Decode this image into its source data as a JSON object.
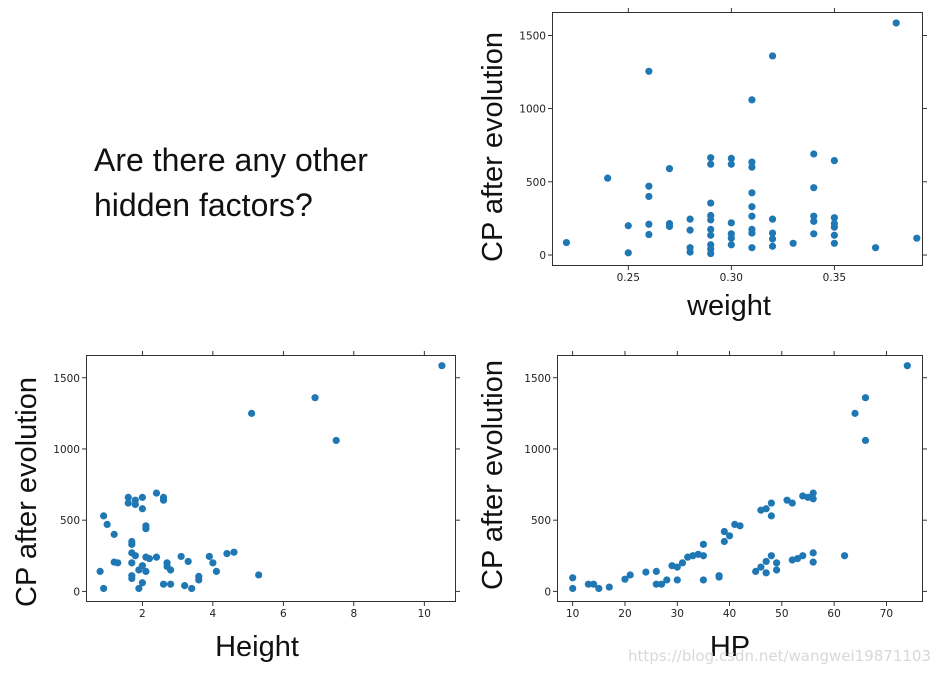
{
  "question": {
    "line1": "Are there any other",
    "line2": "hidden factors?"
  },
  "watermark": "https://blog.csdn.net/wangwei19871103",
  "colors": {
    "points": "#1f77b4",
    "axes": "#000000"
  },
  "chart_data": [
    {
      "id": "weight",
      "type": "scatter",
      "xlabel": "weight",
      "ylabel": "CP after evolution",
      "xlim": [
        0.213,
        0.393
      ],
      "ylim": [
        -75,
        1660
      ],
      "xticks": [
        0.25,
        0.3,
        0.35
      ],
      "xtick_labels": [
        "0.25",
        "0.30",
        "0.35"
      ],
      "yticks": [
        0,
        500,
        1000,
        1500
      ],
      "ytick_labels": [
        "0",
        "500",
        "1000",
        "1500"
      ],
      "points": [
        [
          0.22,
          85
        ],
        [
          0.24,
          525
        ],
        [
          0.25,
          200
        ],
        [
          0.25,
          15
        ],
        [
          0.26,
          1255
        ],
        [
          0.26,
          470
        ],
        [
          0.26,
          400
        ],
        [
          0.26,
          210
        ],
        [
          0.26,
          140
        ],
        [
          0.27,
          590
        ],
        [
          0.27,
          215
        ],
        [
          0.27,
          195
        ],
        [
          0.28,
          245
        ],
        [
          0.28,
          170
        ],
        [
          0.28,
          50
        ],
        [
          0.28,
          20
        ],
        [
          0.29,
          665
        ],
        [
          0.29,
          620
        ],
        [
          0.29,
          355
        ],
        [
          0.29,
          270
        ],
        [
          0.29,
          240
        ],
        [
          0.29,
          175
        ],
        [
          0.29,
          135
        ],
        [
          0.29,
          70
        ],
        [
          0.29,
          40
        ],
        [
          0.29,
          10
        ],
        [
          0.3,
          660
        ],
        [
          0.3,
          620
        ],
        [
          0.3,
          220
        ],
        [
          0.3,
          145
        ],
        [
          0.3,
          115
        ],
        [
          0.3,
          70
        ],
        [
          0.31,
          1060
        ],
        [
          0.31,
          635
        ],
        [
          0.31,
          600
        ],
        [
          0.31,
          425
        ],
        [
          0.31,
          330
        ],
        [
          0.31,
          265
        ],
        [
          0.31,
          175
        ],
        [
          0.31,
          150
        ],
        [
          0.31,
          50
        ],
        [
          0.32,
          1360
        ],
        [
          0.32,
          245
        ],
        [
          0.32,
          150
        ],
        [
          0.32,
          110
        ],
        [
          0.32,
          60
        ],
        [
          0.33,
          80
        ],
        [
          0.34,
          690
        ],
        [
          0.34,
          460
        ],
        [
          0.34,
          265
        ],
        [
          0.34,
          230
        ],
        [
          0.34,
          145
        ],
        [
          0.35,
          645
        ],
        [
          0.35,
          255
        ],
        [
          0.35,
          215
        ],
        [
          0.35,
          190
        ],
        [
          0.35,
          135
        ],
        [
          0.35,
          80
        ],
        [
          0.37,
          50
        ],
        [
          0.38,
          1585
        ],
        [
          0.39,
          115
        ]
      ]
    },
    {
      "id": "height",
      "type": "scatter",
      "xlabel": "Height",
      "ylabel": "CP after evolution",
      "xlim": [
        0.4,
        10.9
      ],
      "ylim": [
        -75,
        1660
      ],
      "xticks": [
        2,
        4,
        6,
        8,
        10
      ],
      "xtick_labels": [
        "2",
        "4",
        "6",
        "8",
        "10"
      ],
      "yticks": [
        0,
        500,
        1000,
        1500
      ],
      "ytick_labels": [
        "0",
        "500",
        "1000",
        "1500"
      ],
      "points": [
        [
          0.8,
          140
        ],
        [
          0.9,
          530
        ],
        [
          0.9,
          20
        ],
        [
          1.0,
          470
        ],
        [
          1.2,
          400
        ],
        [
          1.2,
          205
        ],
        [
          1.3,
          200
        ],
        [
          1.6,
          660
        ],
        [
          1.6,
          620
        ],
        [
          1.7,
          350
        ],
        [
          1.7,
          330
        ],
        [
          1.7,
          270
        ],
        [
          1.7,
          200
        ],
        [
          1.7,
          110
        ],
        [
          1.7,
          90
        ],
        [
          1.8,
          640
        ],
        [
          1.8,
          610
        ],
        [
          1.8,
          250
        ],
        [
          1.9,
          20
        ],
        [
          1.9,
          150
        ],
        [
          2.0,
          660
        ],
        [
          2.0,
          580
        ],
        [
          2.0,
          180
        ],
        [
          2.0,
          60
        ],
        [
          2.1,
          460
        ],
        [
          2.1,
          440
        ],
        [
          2.1,
          240
        ],
        [
          2.1,
          140
        ],
        [
          2.2,
          230
        ],
        [
          2.4,
          690
        ],
        [
          2.4,
          240
        ],
        [
          2.6,
          660
        ],
        [
          2.6,
          640
        ],
        [
          2.6,
          50
        ],
        [
          2.7,
          200
        ],
        [
          2.7,
          175
        ],
        [
          2.8,
          150
        ],
        [
          2.8,
          50
        ],
        [
          3.1,
          245
        ],
        [
          3.2,
          40
        ],
        [
          3.3,
          210
        ],
        [
          3.4,
          20
        ],
        [
          3.6,
          105
        ],
        [
          3.6,
          80
        ],
        [
          3.9,
          245
        ],
        [
          4.0,
          200
        ],
        [
          4.1,
          140
        ],
        [
          4.4,
          265
        ],
        [
          4.6,
          275
        ],
        [
          5.1,
          1250
        ],
        [
          5.3,
          115
        ],
        [
          6.9,
          1360
        ],
        [
          7.5,
          1060
        ],
        [
          10.5,
          1585
        ]
      ]
    },
    {
      "id": "hp",
      "type": "scatter",
      "xlabel": "HP",
      "ylabel": "CP after evolution",
      "xlim": [
        7,
        77
      ],
      "ylim": [
        -75,
        1660
      ],
      "xticks": [
        10,
        20,
        30,
        40,
        50,
        60,
        70
      ],
      "xtick_labels": [
        "10",
        "20",
        "30",
        "40",
        "50",
        "60",
        "70"
      ],
      "yticks": [
        0,
        500,
        1000,
        1500
      ],
      "ytick_labels": [
        "0",
        "500",
        "1000",
        "1500"
      ],
      "points": [
        [
          10,
          95
        ],
        [
          10,
          20
        ],
        [
          13,
          50
        ],
        [
          14,
          50
        ],
        [
          15,
          20
        ],
        [
          17,
          30
        ],
        [
          20,
          85
        ],
        [
          21,
          115
        ],
        [
          24,
          135
        ],
        [
          26,
          140
        ],
        [
          26,
          50
        ],
        [
          27,
          50
        ],
        [
          28,
          80
        ],
        [
          29,
          180
        ],
        [
          30,
          170
        ],
        [
          30,
          80
        ],
        [
          31,
          200
        ],
        [
          32,
          240
        ],
        [
          33,
          250
        ],
        [
          34,
          260
        ],
        [
          35,
          330
        ],
        [
          35,
          250
        ],
        [
          35,
          80
        ],
        [
          38,
          110
        ],
        [
          38,
          100
        ],
        [
          39,
          350
        ],
        [
          39,
          420
        ],
        [
          40,
          390
        ],
        [
          41,
          470
        ],
        [
          42,
          460
        ],
        [
          45,
          140
        ],
        [
          46,
          570
        ],
        [
          46,
          170
        ],
        [
          47,
          580
        ],
        [
          47,
          210
        ],
        [
          47,
          130
        ],
        [
          48,
          620
        ],
        [
          48,
          530
        ],
        [
          48,
          250
        ],
        [
          49,
          200
        ],
        [
          49,
          150
        ],
        [
          51,
          640
        ],
        [
          52,
          620
        ],
        [
          52,
          220
        ],
        [
          53,
          230
        ],
        [
          54,
          670
        ],
        [
          54,
          250
        ],
        [
          55,
          660
        ],
        [
          56,
          690
        ],
        [
          56,
          650
        ],
        [
          56,
          270
        ],
        [
          56,
          205
        ],
        [
          62,
          250
        ],
        [
          64,
          1250
        ],
        [
          66,
          1360
        ],
        [
          66,
          1060
        ],
        [
          74,
          1585
        ]
      ]
    }
  ]
}
